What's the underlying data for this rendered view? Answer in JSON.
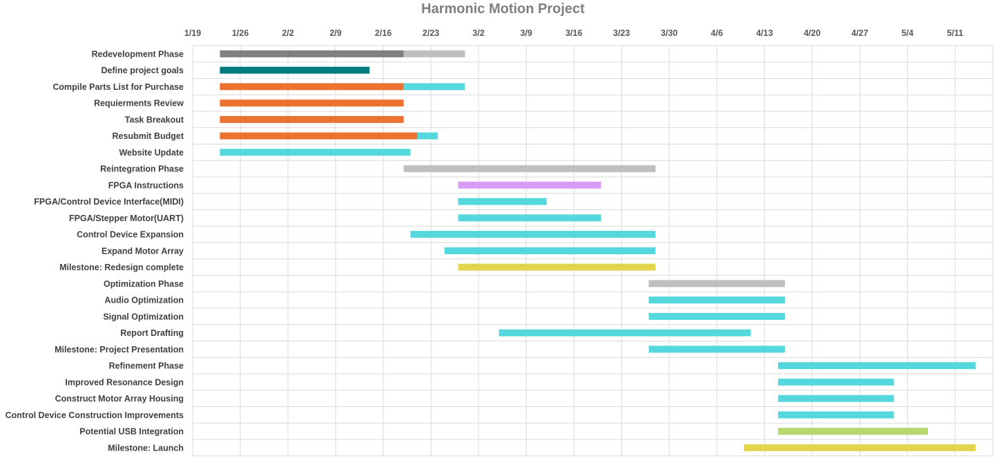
{
  "chart_data": {
    "type": "bar",
    "orientation": "horizontal",
    "title": "Harmonic Motion Project",
    "xlabel": "",
    "ylabel": "",
    "grid": true,
    "legend": "none",
    "year": 2019,
    "x_ticks": [
      "1/19",
      "1/26",
      "2/2",
      "2/9",
      "2/16",
      "2/23",
      "3/2",
      "3/9",
      "3/16",
      "3/23",
      "3/30",
      "4/6",
      "4/13",
      "4/20",
      "4/27",
      "5/4",
      "5/11"
    ],
    "xlim": [
      "1/19",
      "5/17"
    ],
    "colors": {
      "dark_gray": "#808080",
      "light_gray": "#bfbfbf",
      "teal": "#007b7f",
      "orange": "#ed7232",
      "cyan": "#55d8dd",
      "purple": "#d79cf4",
      "yellow": "#e2d44b",
      "green": "#b6d86f",
      "grid": "#d9d9d9"
    },
    "tasks": [
      {
        "label": "Redevelopment Phase",
        "segments": [
          {
            "start": "1/23",
            "end": "2/19",
            "color": "dark_gray"
          },
          {
            "start": "2/19",
            "end": "2/28",
            "color": "light_gray"
          }
        ]
      },
      {
        "label": "Define project goals",
        "segments": [
          {
            "start": "1/23",
            "end": "2/14",
            "color": "teal"
          }
        ]
      },
      {
        "label": "Compile Parts List for Purchase",
        "segments": [
          {
            "start": "1/23",
            "end": "2/19",
            "color": "orange"
          },
          {
            "start": "2/19",
            "end": "2/28",
            "color": "cyan"
          }
        ]
      },
      {
        "label": "Requierments Review",
        "segments": [
          {
            "start": "1/23",
            "end": "2/19",
            "color": "orange"
          }
        ]
      },
      {
        "label": "Task Breakout",
        "segments": [
          {
            "start": "1/23",
            "end": "2/19",
            "color": "orange"
          }
        ]
      },
      {
        "label": "Resubmit Budget",
        "segments": [
          {
            "start": "1/23",
            "end": "2/21",
            "color": "orange"
          },
          {
            "start": "2/21",
            "end": "2/24",
            "color": "cyan"
          }
        ]
      },
      {
        "label": "Website Update",
        "segments": [
          {
            "start": "1/23",
            "end": "2/20",
            "color": "cyan"
          }
        ]
      },
      {
        "label": "Reintegration Phase",
        "segments": [
          {
            "start": "2/19",
            "end": "3/28",
            "color": "light_gray"
          }
        ]
      },
      {
        "label": "FPGA Instructions",
        "segments": [
          {
            "start": "2/27",
            "end": "3/20",
            "color": "purple"
          }
        ]
      },
      {
        "label": "FPGA/Control Device Interface(MIDI)",
        "segments": [
          {
            "start": "2/27",
            "end": "3/12",
            "color": "cyan"
          }
        ]
      },
      {
        "label": "FPGA/Stepper Motor(UART)",
        "segments": [
          {
            "start": "2/27",
            "end": "3/20",
            "color": "cyan"
          }
        ]
      },
      {
        "label": "Control Device Expansion",
        "segments": [
          {
            "start": "2/20",
            "end": "3/28",
            "color": "cyan"
          }
        ]
      },
      {
        "label": "Expand Motor Array",
        "segments": [
          {
            "start": "2/25",
            "end": "3/28",
            "color": "cyan"
          }
        ]
      },
      {
        "label": "Milestone: Redesign complete",
        "segments": [
          {
            "start": "2/27",
            "end": "3/28",
            "color": "yellow"
          }
        ]
      },
      {
        "label": "Optimization Phase",
        "segments": [
          {
            "start": "3/27",
            "end": "4/16",
            "color": "light_gray"
          }
        ]
      },
      {
        "label": "Audio Optimization",
        "segments": [
          {
            "start": "3/27",
            "end": "4/16",
            "color": "cyan"
          }
        ]
      },
      {
        "label": "Signal Optimization",
        "segments": [
          {
            "start": "3/27",
            "end": "4/16",
            "color": "cyan"
          }
        ]
      },
      {
        "label": "Report Drafting",
        "segments": [
          {
            "start": "3/5",
            "end": "4/11",
            "color": "cyan"
          }
        ]
      },
      {
        "label": "Milestone: Project Presentation",
        "segments": [
          {
            "start": "3/27",
            "end": "4/16",
            "color": "cyan"
          }
        ]
      },
      {
        "label": "Refinement Phase",
        "segments": [
          {
            "start": "4/15",
            "end": "5/14",
            "color": "cyan"
          }
        ]
      },
      {
        "label": "Improved Resonance Design",
        "segments": [
          {
            "start": "4/15",
            "end": "5/2",
            "color": "cyan"
          }
        ]
      },
      {
        "label": "Construct Motor Array Housing",
        "segments": [
          {
            "start": "4/15",
            "end": "5/2",
            "color": "cyan"
          }
        ]
      },
      {
        "label": "Control Device Construction Improvements",
        "segments": [
          {
            "start": "4/15",
            "end": "5/2",
            "color": "cyan"
          }
        ]
      },
      {
        "label": "Potential USB Integration",
        "segments": [
          {
            "start": "4/15",
            "end": "5/7",
            "color": "green"
          }
        ]
      },
      {
        "label": "Milestone: Launch",
        "segments": [
          {
            "start": "4/10",
            "end": "5/14",
            "color": "yellow"
          }
        ]
      }
    ]
  }
}
